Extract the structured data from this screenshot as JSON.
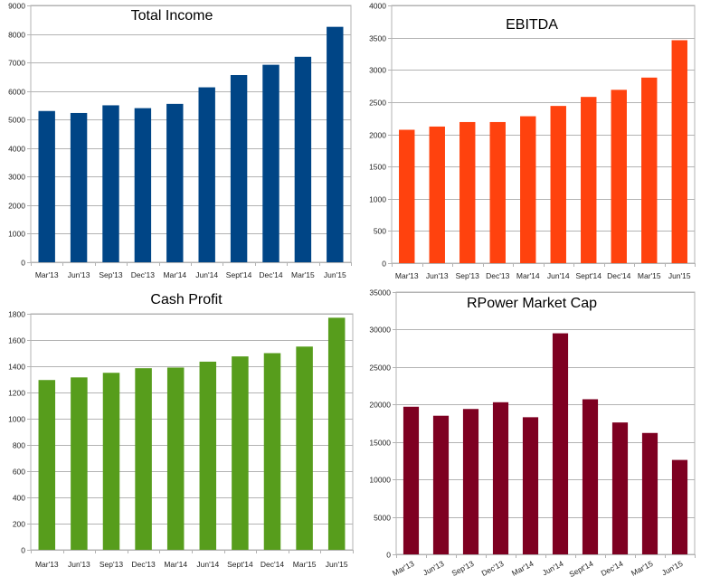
{
  "chart_data": [
    {
      "type": "bar",
      "title": "Total Income",
      "color": "#004586",
      "categories": [
        "Mar'13",
        "Jun'13",
        "Sep'13",
        "Dec'13",
        "Mar'14",
        "Jun'14",
        "Sept'14",
        "Dec'14",
        "Mar'15",
        "Jun'15"
      ],
      "values": [
        5300,
        5230,
        5500,
        5400,
        5550,
        6130,
        6560,
        6920,
        7200,
        8250
      ],
      "yticks": [
        0,
        1000,
        2000,
        3000,
        4000,
        5000,
        6000,
        7000,
        8000,
        9000
      ],
      "ylim": [
        0,
        9000
      ],
      "xlabel": "",
      "ylabel": "",
      "grid": true
    },
    {
      "type": "bar",
      "title": "EBITDA",
      "color": "#ff420e",
      "categories": [
        "Mar'13",
        "Jun'13",
        "Sep'13",
        "Dec'13",
        "Mar'14",
        "Jun'14",
        "Sept'14",
        "Dec'14",
        "Mar'15",
        "Jun'15"
      ],
      "values": [
        2070,
        2120,
        2190,
        2190,
        2280,
        2440,
        2580,
        2690,
        2880,
        3460
      ],
      "yticks": [
        0,
        500,
        1000,
        1500,
        2000,
        2500,
        3000,
        3500,
        4000
      ],
      "ylim": [
        0,
        4000
      ],
      "xlabel": "",
      "ylabel": "",
      "grid": true
    },
    {
      "type": "bar",
      "title": "Cash Profit",
      "color": "#579d1c",
      "categories": [
        "Mar'13",
        "Jun'13",
        "Sep'13",
        "Dec'13",
        "Mar'14",
        "Jun'14",
        "Sept'14",
        "Dec'14",
        "Mar'15",
        "Jun'15"
      ],
      "values": [
        1295,
        1315,
        1350,
        1385,
        1390,
        1435,
        1475,
        1500,
        1550,
        1770
      ],
      "yticks": [
        0,
        200,
        400,
        600,
        800,
        1000,
        1200,
        1400,
        1600,
        1800
      ],
      "ylim": [
        0,
        1800
      ],
      "xlabel": "",
      "ylabel": "",
      "grid": true
    },
    {
      "type": "bar",
      "title": "RPower Market Cap",
      "color": "#7e0021",
      "categories": [
        "Mar'13",
        "Jun'13",
        "Sep'13",
        "Dec'13",
        "Mar'14",
        "Jun'14",
        "Sept'14",
        "Dec'14",
        "Mar'15",
        "Jun'15"
      ],
      "values": [
        19700,
        18500,
        19400,
        20300,
        18300,
        29500,
        20700,
        17600,
        16200,
        12600
      ],
      "yticks": [
        0,
        5000,
        10000,
        15000,
        20000,
        25000,
        30000,
        35000
      ],
      "ylim": [
        0,
        35000
      ],
      "xlabel": "",
      "ylabel": "",
      "grid": true,
      "rotated_labels": true
    }
  ]
}
